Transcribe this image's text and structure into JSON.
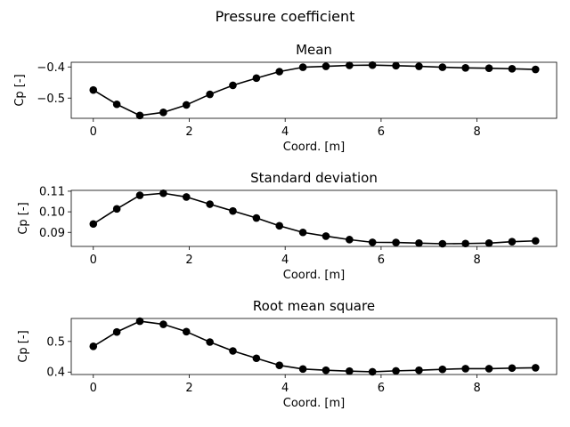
{
  "figure": {
    "title": "Pressure coefficient"
  },
  "chart_data": [
    {
      "type": "line",
      "title": "Mean",
      "xlabel": "Coord. [m]",
      "ylabel": "Cp [-]",
      "xlim": [
        -0.46,
        9.66
      ],
      "ylim": [
        -0.565,
        -0.385
      ],
      "xticks": [
        0,
        2,
        4,
        6,
        8
      ],
      "yticks": [
        -0.5,
        -0.4
      ],
      "ytick_labels": [
        "−0.5",
        "−0.4"
      ],
      "grid": false,
      "series": [
        {
          "color": "#000000",
          "x": [
            0,
            0.49,
            0.97,
            1.46,
            1.94,
            2.43,
            2.91,
            3.4,
            3.88,
            4.37,
            4.85,
            5.34,
            5.82,
            6.31,
            6.79,
            7.28,
            7.76,
            8.25,
            8.73,
            9.22
          ],
          "values": [
            -0.474,
            -0.52,
            -0.556,
            -0.546,
            -0.522,
            -0.488,
            -0.459,
            -0.436,
            -0.415,
            -0.401,
            -0.398,
            -0.395,
            -0.394,
            -0.396,
            -0.398,
            -0.401,
            -0.403,
            -0.404,
            -0.406,
            -0.408
          ]
        }
      ]
    },
    {
      "type": "line",
      "title": "Standard deviation",
      "xlabel": "Coord. [m]",
      "ylabel": "Cp [-]",
      "xlim": [
        -0.46,
        9.66
      ],
      "ylim": [
        0.0832,
        0.1104
      ],
      "xticks": [
        0,
        2,
        4,
        6,
        8
      ],
      "yticks": [
        0.09,
        0.1,
        0.11
      ],
      "ytick_labels": [
        "0.09",
        "0.10",
        "0.11"
      ],
      "grid": false,
      "series": [
        {
          "color": "#000000",
          "x": [
            0,
            0.49,
            0.97,
            1.46,
            1.94,
            2.43,
            2.91,
            3.4,
            3.88,
            4.37,
            4.85,
            5.34,
            5.82,
            6.31,
            6.79,
            7.28,
            7.76,
            8.25,
            8.73,
            9.22
          ],
          "values": [
            0.0941,
            0.1014,
            0.108,
            0.109,
            0.1072,
            0.1037,
            0.1004,
            0.097,
            0.0932,
            0.09,
            0.0882,
            0.0865,
            0.0852,
            0.0851,
            0.0848,
            0.0845,
            0.0846,
            0.0848,
            0.0855,
            0.0859
          ]
        }
      ]
    },
    {
      "type": "line",
      "title": "Root mean square",
      "xlabel": "Coord. [m]",
      "ylabel": "Cp [-]",
      "xlim": [
        -0.46,
        9.66
      ],
      "ylim": [
        0.392,
        0.575
      ],
      "xticks": [
        0,
        2,
        4,
        6,
        8
      ],
      "yticks": [
        0.4,
        0.5
      ],
      "ytick_labels": [
        "0.4",
        "0.5"
      ],
      "grid": false,
      "series": [
        {
          "color": "#000000",
          "x": [
            0,
            0.49,
            0.97,
            1.46,
            1.94,
            2.43,
            2.91,
            3.4,
            3.88,
            4.37,
            4.85,
            5.34,
            5.82,
            6.31,
            6.79,
            7.28,
            7.76,
            8.25,
            8.73,
            9.22
          ],
          "values": [
            0.484,
            0.531,
            0.566,
            0.556,
            0.532,
            0.498,
            0.469,
            0.445,
            0.422,
            0.41,
            0.406,
            0.403,
            0.401,
            0.404,
            0.406,
            0.409,
            0.411,
            0.411,
            0.413,
            0.414
          ]
        }
      ]
    }
  ]
}
